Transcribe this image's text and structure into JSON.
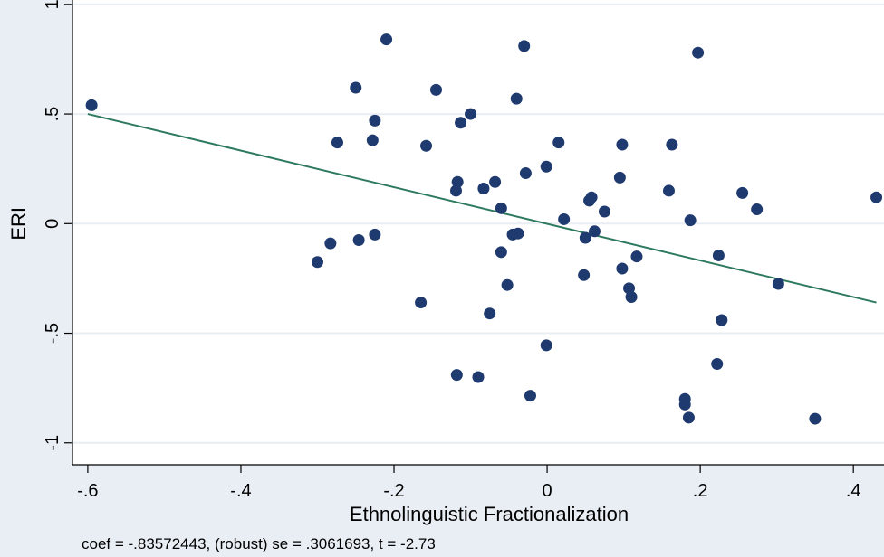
{
  "colors": {
    "background": "#e9eef4",
    "plot_background": "#ffffff",
    "gridline": "#e9eef4",
    "marker": "#1f3a6e",
    "fit_line": "#2e7a5e",
    "axis": "#000000"
  },
  "note": "coef = -.83572443, (robust) se = .3061693, t = -2.73",
  "chart_data": {
    "type": "scatter",
    "xlabel": "Ethnolinguistic Fractionalization",
    "ylabel": "ERI",
    "xlim": [
      -0.62,
      0.44
    ],
    "ylim": [
      -1.1,
      1.02
    ],
    "grid": true,
    "x_ticks": [
      {
        "value": -0.6,
        "label": "-.6"
      },
      {
        "value": -0.4,
        "label": "-.4"
      },
      {
        "value": -0.2,
        "label": "-.2"
      },
      {
        "value": 0,
        "label": "0"
      },
      {
        "value": 0.2,
        "label": ".2"
      },
      {
        "value": 0.4,
        "label": ".4"
      }
    ],
    "y_ticks": [
      {
        "value": -1,
        "label": "-1"
      },
      {
        "value": -0.5,
        "label": "-.5"
      },
      {
        "value": 0,
        "label": "0"
      },
      {
        "value": 0.5,
        "label": ".5"
      },
      {
        "value": 1,
        "label": "1"
      }
    ],
    "fit_line": {
      "x": [
        -0.6,
        0.43
      ],
      "y": [
        0.5,
        -0.36
      ]
    },
    "points": [
      {
        "x": -0.595,
        "y": 0.54
      },
      {
        "x": -0.21,
        "y": 0.84
      },
      {
        "x": -0.03,
        "y": 0.81
      },
      {
        "x": 0.197,
        "y": 0.78
      },
      {
        "x": -0.25,
        "y": 0.62
      },
      {
        "x": -0.145,
        "y": 0.61
      },
      {
        "x": -0.04,
        "y": 0.57
      },
      {
        "x": -0.1,
        "y": 0.5
      },
      {
        "x": -0.225,
        "y": 0.47
      },
      {
        "x": -0.113,
        "y": 0.46
      },
      {
        "x": -0.274,
        "y": 0.37
      },
      {
        "x": -0.228,
        "y": 0.38
      },
      {
        "x": 0.015,
        "y": 0.37
      },
      {
        "x": 0.098,
        "y": 0.36
      },
      {
        "x": 0.163,
        "y": 0.36
      },
      {
        "x": -0.158,
        "y": 0.355
      },
      {
        "x": -0.001,
        "y": 0.26
      },
      {
        "x": -0.028,
        "y": 0.23
      },
      {
        "x": 0.095,
        "y": 0.21
      },
      {
        "x": -0.068,
        "y": 0.19
      },
      {
        "x": -0.117,
        "y": 0.19
      },
      {
        "x": -0.119,
        "y": 0.15
      },
      {
        "x": -0.083,
        "y": 0.16
      },
      {
        "x": 0.159,
        "y": 0.15
      },
      {
        "x": 0.255,
        "y": 0.14
      },
      {
        "x": 0.43,
        "y": 0.12
      },
      {
        "x": 0.058,
        "y": 0.12
      },
      {
        "x": 0.055,
        "y": 0.105
      },
      {
        "x": -0.06,
        "y": 0.07
      },
      {
        "x": 0.274,
        "y": 0.065
      },
      {
        "x": 0.075,
        "y": 0.055
      },
      {
        "x": 0.022,
        "y": 0.02
      },
      {
        "x": 0.187,
        "y": 0.015
      },
      {
        "x": 0.062,
        "y": -0.035
      },
      {
        "x": -0.038,
        "y": -0.045
      },
      {
        "x": -0.045,
        "y": -0.05
      },
      {
        "x": -0.225,
        "y": -0.05
      },
      {
        "x": 0.05,
        "y": -0.065
      },
      {
        "x": -0.246,
        "y": -0.075
      },
      {
        "x": -0.283,
        "y": -0.09
      },
      {
        "x": -0.06,
        "y": -0.13
      },
      {
        "x": 0.224,
        "y": -0.145
      },
      {
        "x": 0.117,
        "y": -0.15
      },
      {
        "x": -0.3,
        "y": -0.175
      },
      {
        "x": 0.098,
        "y": -0.205
      },
      {
        "x": 0.048,
        "y": -0.235
      },
      {
        "x": 0.302,
        "y": -0.275
      },
      {
        "x": -0.052,
        "y": -0.28
      },
      {
        "x": 0.107,
        "y": -0.295
      },
      {
        "x": 0.11,
        "y": -0.335
      },
      {
        "x": -0.165,
        "y": -0.36
      },
      {
        "x": -0.075,
        "y": -0.41
      },
      {
        "x": 0.228,
        "y": -0.44
      },
      {
        "x": -0.001,
        "y": -0.555
      },
      {
        "x": 0.222,
        "y": -0.64
      },
      {
        "x": -0.118,
        "y": -0.69
      },
      {
        "x": -0.09,
        "y": -0.7
      },
      {
        "x": -0.022,
        "y": -0.785
      },
      {
        "x": 0.18,
        "y": -0.8
      },
      {
        "x": 0.18,
        "y": -0.825
      },
      {
        "x": 0.185,
        "y": -0.885
      },
      {
        "x": 0.35,
        "y": -0.89
      }
    ]
  }
}
